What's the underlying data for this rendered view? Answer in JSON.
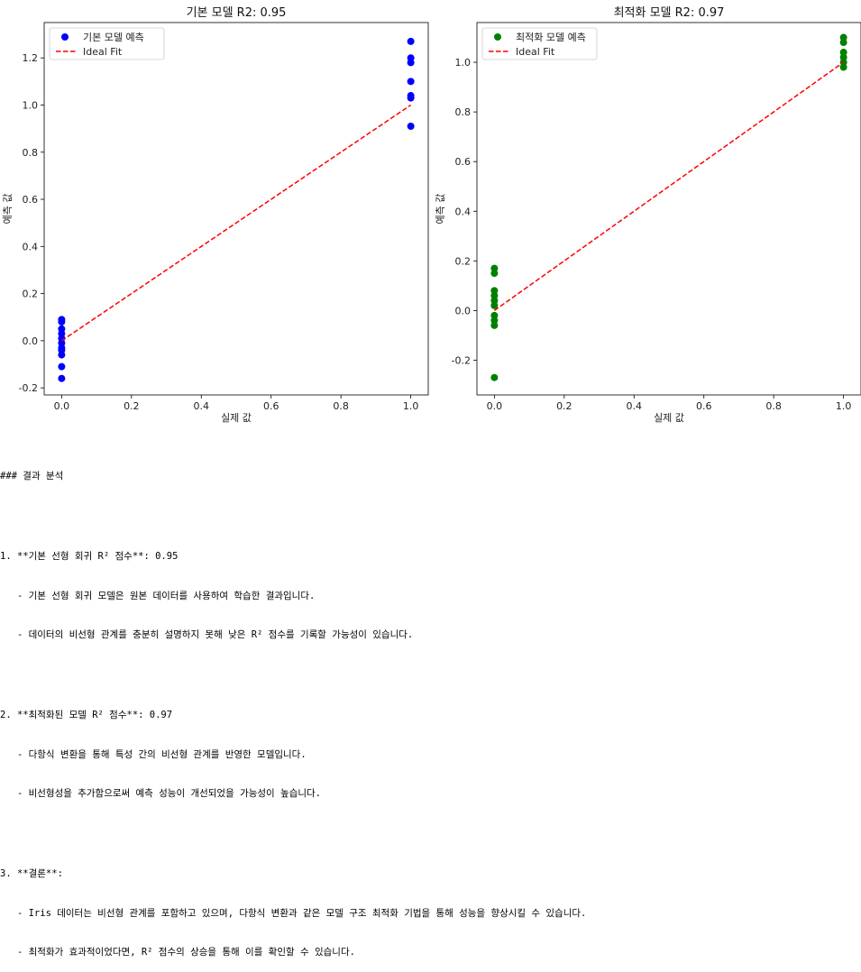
{
  "chart_data": [
    {
      "type": "scatter",
      "title": "기본 모델 R2: 0.95",
      "xlabel": "실제 값",
      "ylabel": "예측 값",
      "xlim": [
        -0.05,
        1.05
      ],
      "ylim": [
        -0.23,
        1.35
      ],
      "xticks": [
        0.0,
        0.2,
        0.4,
        0.6,
        0.8,
        1.0
      ],
      "xtick_labels": [
        "0.0",
        "0.2",
        "0.4",
        "0.6",
        "0.8",
        "1.0"
      ],
      "yticks": [
        -0.2,
        0.0,
        0.2,
        0.4,
        0.6,
        0.8,
        1.0,
        1.2
      ],
      "ytick_labels": [
        "-0.2",
        "0.0",
        "0.2",
        "0.4",
        "0.6",
        "0.8",
        "1.0",
        "1.2"
      ],
      "legend_position": "upper-left",
      "grid": false,
      "series": [
        {
          "name": "기본 모델 예측",
          "kind": "points",
          "color": "#0000ff",
          "points": [
            [
              0,
              0.09
            ],
            [
              0,
              0.08
            ],
            [
              0,
              0.05
            ],
            [
              0,
              0.03
            ],
            [
              0,
              0.01
            ],
            [
              0,
              -0.01
            ],
            [
              0,
              -0.03
            ],
            [
              0,
              -0.04
            ],
            [
              0,
              -0.06
            ],
            [
              0,
              -0.11
            ],
            [
              0,
              -0.16
            ],
            [
              1,
              1.27
            ],
            [
              1,
              1.2
            ],
            [
              1,
              1.18
            ],
            [
              1,
              1.1
            ],
            [
              1,
              1.04
            ],
            [
              1,
              1.03
            ],
            [
              1,
              0.91
            ]
          ]
        },
        {
          "name": "Ideal Fit",
          "kind": "line",
          "dashed": true,
          "color": "#ff0000",
          "points": [
            [
              0,
              0
            ],
            [
              1,
              1
            ]
          ]
        }
      ]
    },
    {
      "type": "scatter",
      "title": "최적화 모델 R2: 0.97",
      "xlabel": "실제 값",
      "ylabel": "예측 값",
      "xlim": [
        -0.05,
        1.05
      ],
      "ylim": [
        -0.34,
        1.16
      ],
      "xticks": [
        0.0,
        0.2,
        0.4,
        0.6,
        0.8,
        1.0
      ],
      "xtick_labels": [
        "0.0",
        "0.2",
        "0.4",
        "0.6",
        "0.8",
        "1.0"
      ],
      "yticks": [
        -0.2,
        0.0,
        0.2,
        0.4,
        0.6,
        0.8,
        1.0
      ],
      "ytick_labels": [
        "-0.2",
        "0.0",
        "0.2",
        "0.4",
        "0.6",
        "0.8",
        "1.0"
      ],
      "legend_position": "upper-left",
      "grid": false,
      "series": [
        {
          "name": "최적화 모델 예측",
          "kind": "points",
          "color": "#008000",
          "points": [
            [
              0,
              0.17
            ],
            [
              0,
              0.15
            ],
            [
              0,
              0.08
            ],
            [
              0,
              0.06
            ],
            [
              0,
              0.04
            ],
            [
              0,
              0.02
            ],
            [
              0,
              -0.02
            ],
            [
              0,
              -0.04
            ],
            [
              0,
              -0.06
            ],
            [
              0,
              -0.27
            ],
            [
              1,
              1.1
            ],
            [
              1,
              1.08
            ],
            [
              1,
              1.04
            ],
            [
              1,
              1.02
            ],
            [
              1,
              1.0
            ],
            [
              1,
              0.98
            ]
          ]
        },
        {
          "name": "Ideal Fit",
          "kind": "line",
          "dashed": true,
          "color": "#ff0000",
          "points": [
            [
              0,
              0
            ],
            [
              1,
              1
            ]
          ]
        }
      ]
    }
  ],
  "notes": {
    "heading": "### 결과 분석",
    "sections": [
      {
        "title": "1. **기본 선형 회귀 R² 점수**: 0.95",
        "bullets": [
          "   - 기본 선형 회귀 모델은 원본 데이터를 사용하여 학습한 결과입니다.",
          "   - 데이터의 비선형 관계를 충분히 설명하지 못해 낮은 R² 점수를 기록할 가능성이 있습니다."
        ]
      },
      {
        "title": "2. **최적화된 모델 R² 점수**: 0.97",
        "bullets": [
          "   - 다항식 변환을 통해 특성 간의 비선형 관계를 반영한 모델입니다.",
          "   - 비선형성을 추가함으로써 예측 성능이 개선되었을 가능성이 높습니다."
        ]
      },
      {
        "title": "3. **결론**:",
        "bullets": [
          "   - Iris 데이터는 비선형 관계를 포함하고 있으며, 다항식 변환과 같은 모델 구조 최적화 기법을 통해 성능을 향상시킬 수 있습니다.",
          "   - 최적화가 효과적이었다면, R² 점수의 상승을 통해 이를 확인할 수 있습니다."
        ]
      }
    ]
  }
}
